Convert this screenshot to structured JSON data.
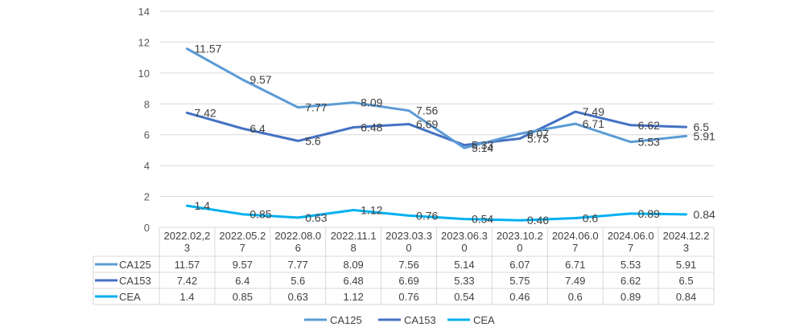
{
  "chart_data": {
    "type": "line",
    "title": "",
    "xlabel": "",
    "ylabel": "",
    "ylim": [
      0,
      14
    ],
    "yticks": [
      0,
      2,
      4,
      6,
      8,
      10,
      12,
      14
    ],
    "grid": true,
    "legend": "bottom",
    "categories": [
      [
        "2022.02,2",
        "3"
      ],
      [
        "2022.05.2",
        "7"
      ],
      [
        "2022.08.0",
        "6"
      ],
      [
        "2022.11.1",
        "8"
      ],
      [
        "2023.03.3",
        "0"
      ],
      [
        "2023.06.3",
        "0"
      ],
      [
        "2023.10.2",
        "0"
      ],
      [
        "2024.06.0",
        "7"
      ],
      [
        "2024.06.0",
        "7"
      ],
      [
        "2024.12.2",
        "3"
      ]
    ],
    "series": [
      {
        "name": "CA125",
        "color": "#5B9BD5",
        "values": [
          11.57,
          9.57,
          7.77,
          8.09,
          7.56,
          5.14,
          6.07,
          6.71,
          5.53,
          5.91
        ]
      },
      {
        "name": "CA153",
        "color": "#4472C4",
        "values": [
          7.42,
          6.4,
          5.6,
          6.48,
          6.69,
          5.33,
          5.75,
          7.49,
          6.62,
          6.5
        ]
      },
      {
        "name": "CEA",
        "color": "#00B0F0",
        "values": [
          1.4,
          0.85,
          0.63,
          1.12,
          0.76,
          0.54,
          0.46,
          0.6,
          0.89,
          0.84
        ]
      }
    ]
  }
}
